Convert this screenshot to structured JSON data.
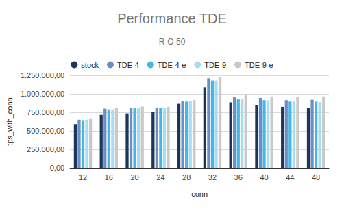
{
  "chart_data": {
    "type": "bar",
    "title": "Performance TDE",
    "subtitle": "R-O 50",
    "x_label": "conn",
    "y_label": "tps_with_conn",
    "categories": [
      "12",
      "16",
      "20",
      "24",
      "28",
      "32",
      "36",
      "40",
      "44",
      "48"
    ],
    "series": [
      {
        "name": "stock",
        "color": "#1c3659",
        "values": [
          590000,
          715000,
          735000,
          750000,
          865000,
          1090000,
          885000,
          845000,
          825000,
          815000
        ]
      },
      {
        "name": "TDE-4",
        "color": "#6b8fc4",
        "values": [
          650000,
          800000,
          810000,
          815000,
          905000,
          1210000,
          955000,
          945000,
          915000,
          920000
        ]
      },
      {
        "name": "TDE-4-e",
        "color": "#47b5e6",
        "values": [
          645000,
          790000,
          805000,
          810000,
          895000,
          1180000,
          925000,
          915000,
          895000,
          895000
        ]
      },
      {
        "name": "TDE-9",
        "color": "#a8dcf2",
        "values": [
          650000,
          790000,
          805000,
          810000,
          900000,
          1180000,
          935000,
          915000,
          900000,
          890000
        ]
      },
      {
        "name": "TDE-9-e",
        "color": "#c9c9c9",
        "values": [
          670000,
          815000,
          830000,
          825000,
          915000,
          1225000,
          985000,
          965000,
          955000,
          965000
        ]
      }
    ],
    "ylim": [
      0,
      1250000
    ],
    "yticks": [
      {
        "value": 0,
        "label": "0,00"
      },
      {
        "value": 250000,
        "label": "250.000,00"
      },
      {
        "value": 500000,
        "label": "500.000,00"
      },
      {
        "value": 750000,
        "label": "750.000,00"
      },
      {
        "value": 1000000,
        "label": "1.000.000,00"
      },
      {
        "value": 1250000,
        "label": "1.250.000,00"
      }
    ],
    "grid": true,
    "legend": "top"
  }
}
